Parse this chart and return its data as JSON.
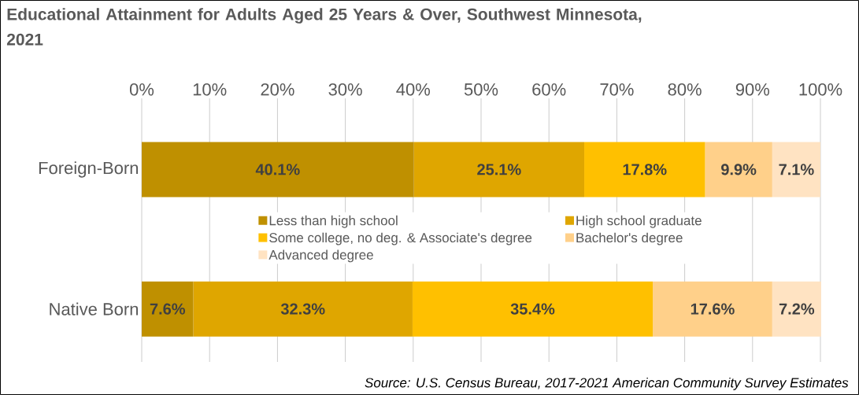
{
  "chart_data": {
    "type": "bar",
    "orientation": "horizontal",
    "stacked": true,
    "title": "Educational Attainment for Adults Aged 25 Years & Over, Southwest Minnesota, 2021",
    "categories": [
      "Foreign-Born",
      "Native Born"
    ],
    "series": [
      {
        "name": "Less than high school",
        "color": "#bf9000",
        "values": [
          40.1,
          7.6
        ],
        "value_labels": [
          "40.1%",
          "7.6%"
        ]
      },
      {
        "name": "High school graduate",
        "color": "#dfa600",
        "values": [
          25.1,
          32.3
        ],
        "value_labels": [
          "25.1%",
          "32.3%"
        ]
      },
      {
        "name": "Some college, no deg. & Associate's degree",
        "color": "#ffc000",
        "values": [
          17.8,
          35.4
        ],
        "value_labels": [
          "17.8%",
          "35.4%"
        ]
      },
      {
        "name": "Bachelor's degree",
        "color": "#ffd08a",
        "values": [
          9.9,
          17.6
        ],
        "value_labels": [
          "9.9%",
          "17.6%"
        ]
      },
      {
        "name": "Advanced degree",
        "color": "#ffe3c2",
        "values": [
          7.1,
          7.2
        ],
        "value_labels": [
          "7.1%",
          "7.2%"
        ]
      }
    ],
    "xlim": [
      0,
      100
    ],
    "xticks": [
      {
        "value": 0,
        "label": "0%"
      },
      {
        "value": 10,
        "label": "10%"
      },
      {
        "value": 20,
        "label": "20%"
      },
      {
        "value": 30,
        "label": "30%"
      },
      {
        "value": 40,
        "label": "40%"
      },
      {
        "value": 50,
        "label": "50%"
      },
      {
        "value": 60,
        "label": "60%"
      },
      {
        "value": 70,
        "label": "70%"
      },
      {
        "value": 80,
        "label": "80%"
      },
      {
        "value": 90,
        "label": "90%"
      },
      {
        "value": 100,
        "label": "100%"
      }
    ],
    "grid": "x",
    "legend": "center",
    "annotations": [
      "Source:  U.S. Census Bureau, 2017-2021 American Community Survey Estimates"
    ]
  }
}
